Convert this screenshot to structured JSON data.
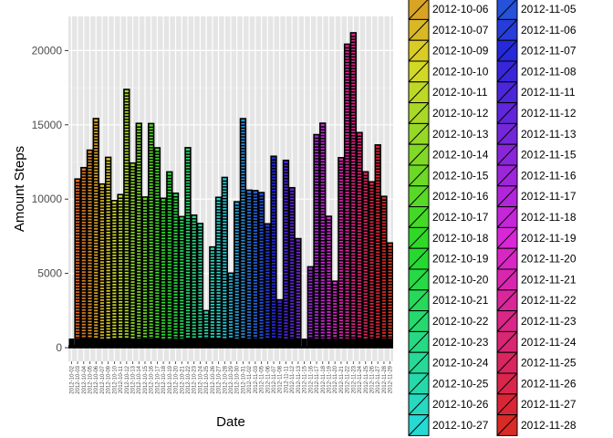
{
  "chart_data": {
    "type": "bar",
    "xlabel": "Date",
    "ylabel": "Amount Steps",
    "ylim": [
      0,
      22500
    ],
    "yticks": [
      0,
      5000,
      10000,
      15000,
      20000
    ],
    "grid": true,
    "legend_position": "right",
    "categories": [
      "2012-10-02",
      "2012-10-03",
      "2012-10-04",
      "2012-10-05",
      "2012-10-06",
      "2012-10-07",
      "2012-10-09",
      "2012-10-10",
      "2012-10-11",
      "2012-10-12",
      "2012-10-13",
      "2012-10-14",
      "2012-10-15",
      "2012-10-16",
      "2012-10-17",
      "2012-10-18",
      "2012-10-19",
      "2012-10-20",
      "2012-10-21",
      "2012-10-22",
      "2012-10-23",
      "2012-10-24",
      "2012-10-25",
      "2012-10-26",
      "2012-10-27",
      "2012-10-28",
      "2012-10-29",
      "2012-10-30",
      "2012-10-31",
      "2012-11-02",
      "2012-11-03",
      "2012-11-05",
      "2012-11-06",
      "2012-11-07",
      "2012-11-08",
      "2012-11-11",
      "2012-11-12",
      "2012-11-13",
      "2012-11-15",
      "2012-11-16",
      "2012-11-17",
      "2012-11-18",
      "2012-11-19",
      "2012-11-20",
      "2012-11-21",
      "2012-11-22",
      "2012-11-23",
      "2012-11-24",
      "2012-11-25",
      "2012-11-26",
      "2012-11-27",
      "2012-11-28",
      "2012-11-29"
    ],
    "values": [
      126,
      11352,
      12116,
      13294,
      15420,
      11015,
      12811,
      9900,
      10304,
      17382,
      12426,
      15098,
      10139,
      15084,
      13452,
      10056,
      11829,
      10395,
      8821,
      13460,
      8918,
      8355,
      2492,
      6778,
      10119,
      11458,
      5018,
      9819,
      15414,
      10600,
      10571,
      10439,
      8334,
      12883,
      3219,
      12608,
      10765,
      7336,
      41,
      5441,
      14339,
      15110,
      8841,
      4472,
      12787,
      20427,
      21194,
      14478,
      11834,
      11162,
      13646,
      10183,
      7047
    ],
    "legend": {
      "columns": [
        [
          "2012-10-06",
          "2012-10-07",
          "2012-10-09",
          "2012-10-10",
          "2012-10-11",
          "2012-10-12",
          "2012-10-13",
          "2012-10-14",
          "2012-10-15",
          "2012-10-16",
          "2012-10-17",
          "2012-10-18",
          "2012-10-19",
          "2012-10-20",
          "2012-10-21",
          "2012-10-22",
          "2012-10-23",
          "2012-10-24",
          "2012-10-25",
          "2012-10-26",
          "2012-10-27"
        ],
        [
          "2012-11-05",
          "2012-11-06",
          "2012-11-07",
          "2012-11-08",
          "2012-11-11",
          "2012-11-12",
          "2012-11-13",
          "2012-11-15",
          "2012-11-16",
          "2012-11-17",
          "2012-11-18",
          "2012-11-19",
          "2012-11-20",
          "2012-11-21",
          "2012-11-22",
          "2012-11-23",
          "2012-11-24",
          "2012-11-25",
          "2012-11-26",
          "2012-11-27",
          "2012-11-28"
        ]
      ]
    }
  }
}
